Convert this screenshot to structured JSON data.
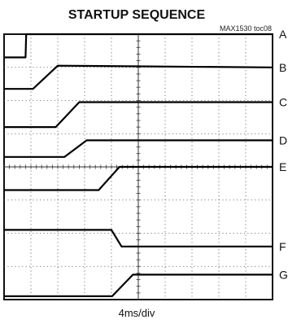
{
  "chart_data": {
    "type": "line",
    "title": "STARTUP SEQUENCE",
    "subtitle": "MAX1530 toc08",
    "xlabel": "4ms/div",
    "ylabel": "",
    "xlim": [
      0,
      40
    ],
    "ylim": [
      0,
      8
    ],
    "grid": true,
    "legend": "right",
    "series": [
      {
        "name": "A",
        "x": [
          0,
          3.2,
          3.3,
          40
        ],
        "y": [
          7.3,
          7.3,
          8.0,
          8.0
        ]
      },
      {
        "name": "B",
        "x": [
          0,
          4.3,
          8.0,
          40
        ],
        "y": [
          6.35,
          6.35,
          7.05,
          7.0
        ]
      },
      {
        "name": "C",
        "x": [
          0,
          7.7,
          11.2,
          40
        ],
        "y": [
          5.2,
          5.2,
          5.95,
          5.95
        ]
      },
      {
        "name": "D",
        "x": [
          0,
          9.0,
          12.3,
          40
        ],
        "y": [
          4.3,
          4.3,
          4.8,
          4.8
        ]
      },
      {
        "name": "E",
        "x": [
          0,
          14.1,
          17.2,
          40
        ],
        "y": [
          3.3,
          3.3,
          4.0,
          4.0
        ]
      },
      {
        "name": "F",
        "x": [
          0,
          16.0,
          17.5,
          40
        ],
        "y": [
          2.1,
          2.1,
          1.6,
          1.6
        ]
      },
      {
        "name": "G",
        "x": [
          0,
          16.1,
          19.2,
          40
        ],
        "y": [
          0.1,
          0.1,
          0.75,
          0.75
        ]
      }
    ]
  }
}
